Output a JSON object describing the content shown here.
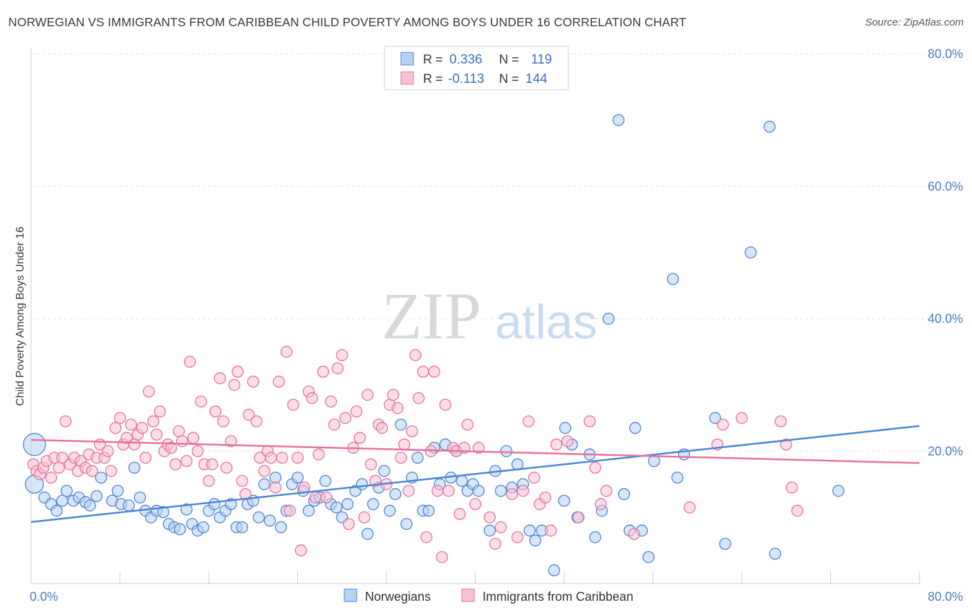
{
  "title": "NORWEGIAN VS IMMIGRANTS FROM CARIBBEAN CHILD POVERTY AMONG BOYS UNDER 16 CORRELATION CHART",
  "source": "Source: ZipAtlas.com",
  "watermark": {
    "zip": "ZIP",
    "atlas": "atlas"
  },
  "colors": {
    "blue": "#4a84d4",
    "blue_fill": "#b7d1f3",
    "pink": "#e8709a",
    "pink_fill": "#f7c2d4",
    "tick": "#4a7cc7"
  },
  "chart_data": {
    "type": "scatter",
    "xlabel": "",
    "ylabel": "Child Poverty Among Boys Under 16",
    "xlim": [
      0,
      80
    ],
    "ylim": [
      0,
      80
    ],
    "x_tick_labels": [
      "0.0%",
      "80.0%"
    ],
    "y_ticks": [
      20,
      40,
      60,
      80
    ],
    "y_tick_labels": [
      "20.0%",
      "40.0%",
      "60.0%",
      "80.0%"
    ],
    "grid": true,
    "legend_position": "top-center",
    "stats": [
      {
        "r_label": "R =",
        "r": "0.336",
        "n_label": "N =",
        "n": "119"
      },
      {
        "r_label": "R =",
        "r": "-0.113",
        "n_label": "N =",
        "n": "144"
      }
    ],
    "series": [
      {
        "name": "Norwegians",
        "color": "#4a84d4",
        "trend": [
          [
            0,
            9.3
          ],
          [
            80,
            23.8
          ]
        ],
        "points": [
          [
            0.3,
            21
          ],
          [
            0.3,
            15
          ],
          [
            1.2,
            13
          ],
          [
            1.8,
            12
          ],
          [
            2.3,
            11
          ],
          [
            2.8,
            12.5
          ],
          [
            3.2,
            14
          ],
          [
            3.8,
            12.5
          ],
          [
            4.3,
            13
          ],
          [
            4.9,
            12.3
          ],
          [
            5.3,
            11.8
          ],
          [
            5.9,
            13.2
          ],
          [
            6.3,
            16
          ],
          [
            7.3,
            12.5
          ],
          [
            7.8,
            14
          ],
          [
            8.1,
            12
          ],
          [
            8.8,
            11.8
          ],
          [
            9.3,
            17.5
          ],
          [
            9.8,
            13
          ],
          [
            10.3,
            11
          ],
          [
            10.8,
            10
          ],
          [
            11.3,
            11
          ],
          [
            11.9,
            10.8
          ],
          [
            12.4,
            9
          ],
          [
            12.9,
            8.5
          ],
          [
            13.4,
            8.2
          ],
          [
            14.0,
            11.2
          ],
          [
            14.5,
            9
          ],
          [
            15.0,
            8
          ],
          [
            15.5,
            8.5
          ],
          [
            16.0,
            11
          ],
          [
            16.5,
            12
          ],
          [
            17.0,
            10
          ],
          [
            17.5,
            11
          ],
          [
            18.0,
            12
          ],
          [
            18.5,
            8.5
          ],
          [
            19.0,
            8.5
          ],
          [
            19.5,
            12
          ],
          [
            20.0,
            12.5
          ],
          [
            20.5,
            10
          ],
          [
            21.0,
            15
          ],
          [
            21.5,
            9.5
          ],
          [
            22.0,
            16
          ],
          [
            22.5,
            8.5
          ],
          [
            23.0,
            11
          ],
          [
            23.5,
            15
          ],
          [
            24.0,
            16
          ],
          [
            24.5,
            14
          ],
          [
            25.0,
            11
          ],
          [
            25.5,
            12.5
          ],
          [
            26.0,
            13
          ],
          [
            26.5,
            15.5
          ],
          [
            27.0,
            12
          ],
          [
            27.5,
            11.5
          ],
          [
            28.0,
            10
          ],
          [
            28.5,
            12
          ],
          [
            29.2,
            14
          ],
          [
            29.8,
            15
          ],
          [
            30.3,
            7.5
          ],
          [
            30.8,
            12
          ],
          [
            31.3,
            14.5
          ],
          [
            31.8,
            17
          ],
          [
            32.3,
            11
          ],
          [
            32.8,
            13.5
          ],
          [
            33.3,
            24
          ],
          [
            33.8,
            9
          ],
          [
            34.3,
            16
          ],
          [
            34.8,
            19
          ],
          [
            35.3,
            11
          ],
          [
            35.8,
            11
          ],
          [
            36.3,
            20.5
          ],
          [
            36.8,
            15
          ],
          [
            37.3,
            21
          ],
          [
            37.8,
            16
          ],
          [
            38.3,
            20
          ],
          [
            38.8,
            15.5
          ],
          [
            39.3,
            14
          ],
          [
            39.8,
            15
          ],
          [
            40.3,
            14
          ],
          [
            41.3,
            8
          ],
          [
            41.8,
            17
          ],
          [
            42.3,
            14
          ],
          [
            42.8,
            20
          ],
          [
            43.3,
            14.5
          ],
          [
            43.8,
            18
          ],
          [
            44.3,
            15
          ],
          [
            44.9,
            8
          ],
          [
            45.4,
            6.5
          ],
          [
            46.0,
            8
          ],
          [
            47.1,
            2
          ],
          [
            48.1,
            23.5
          ],
          [
            48.7,
            21
          ],
          [
            48.0,
            12.5
          ],
          [
            49.2,
            10
          ],
          [
            50.3,
            19.5
          ],
          [
            50.8,
            7
          ],
          [
            51.4,
            11
          ],
          [
            52.0,
            40
          ],
          [
            52.9,
            70
          ],
          [
            53.4,
            13.5
          ],
          [
            53.9,
            8
          ],
          [
            54.4,
            23.5
          ],
          [
            55.0,
            8
          ],
          [
            55.6,
            4
          ],
          [
            56.1,
            18.5
          ],
          [
            57.8,
            46
          ],
          [
            58.2,
            16
          ],
          [
            58.8,
            19.5
          ],
          [
            61.6,
            25
          ],
          [
            62.5,
            6
          ],
          [
            64.8,
            50
          ],
          [
            66.5,
            69
          ],
          [
            67.0,
            4.5
          ],
          [
            72.7,
            14
          ]
        ]
      },
      {
        "name": "Immigrants from Caribbean",
        "color": "#e8709a",
        "trend": [
          [
            0,
            21.7
          ],
          [
            80,
            18.2
          ]
        ],
        "points": [
          [
            0.2,
            18
          ],
          [
            0.5,
            17
          ],
          [
            0.8,
            16.5
          ],
          [
            1.1,
            17.5
          ],
          [
            1.4,
            18.5
          ],
          [
            1.8,
            16
          ],
          [
            2.1,
            19
          ],
          [
            2.5,
            17.5
          ],
          [
            2.8,
            19
          ],
          [
            3.1,
            24.5
          ],
          [
            3.5,
            18
          ],
          [
            3.9,
            19
          ],
          [
            4.2,
            17
          ],
          [
            4.5,
            18.5
          ],
          [
            4.9,
            17.5
          ],
          [
            5.2,
            19.5
          ],
          [
            5.5,
            17
          ],
          [
            5.9,
            19
          ],
          [
            6.2,
            21
          ],
          [
            6.6,
            19
          ],
          [
            6.9,
            20
          ],
          [
            7.2,
            17
          ],
          [
            7.6,
            23.5
          ],
          [
            8.0,
            25
          ],
          [
            8.3,
            21
          ],
          [
            8.6,
            22
          ],
          [
            9.0,
            24
          ],
          [
            9.3,
            21
          ],
          [
            9.6,
            22.5
          ],
          [
            10.0,
            23.5
          ],
          [
            10.3,
            19
          ],
          [
            10.6,
            29
          ],
          [
            11.0,
            24.5
          ],
          [
            11.3,
            22.5
          ],
          [
            11.6,
            26
          ],
          [
            12.0,
            20
          ],
          [
            12.3,
            21
          ],
          [
            12.6,
            20.5
          ],
          [
            13.0,
            18
          ],
          [
            13.3,
            23
          ],
          [
            13.6,
            21.5
          ],
          [
            14.0,
            18.5
          ],
          [
            14.3,
            33.5
          ],
          [
            14.6,
            22
          ],
          [
            15.0,
            20
          ],
          [
            15.3,
            27.5
          ],
          [
            15.6,
            18
          ],
          [
            16.0,
            15.5
          ],
          [
            16.3,
            18
          ],
          [
            16.6,
            26
          ],
          [
            17.0,
            31
          ],
          [
            17.3,
            24.5
          ],
          [
            17.6,
            17.5
          ],
          [
            18.0,
            21.5
          ],
          [
            18.3,
            30
          ],
          [
            18.6,
            32
          ],
          [
            19.0,
            15.5
          ],
          [
            19.3,
            13.5
          ],
          [
            19.6,
            25.5
          ],
          [
            20.0,
            30.5
          ],
          [
            20.3,
            24.5
          ],
          [
            20.6,
            19
          ],
          [
            21.0,
            17
          ],
          [
            21.3,
            20
          ],
          [
            21.6,
            19
          ],
          [
            22.0,
            14.5
          ],
          [
            22.3,
            30.5
          ],
          [
            22.6,
            19
          ],
          [
            23.0,
            35
          ],
          [
            23.3,
            11
          ],
          [
            23.6,
            27
          ],
          [
            24.0,
            19
          ],
          [
            24.3,
            5
          ],
          [
            24.6,
            14.5
          ],
          [
            25.0,
            29
          ],
          [
            25.3,
            28
          ],
          [
            25.6,
            13
          ],
          [
            25.9,
            19.5
          ],
          [
            26.3,
            32
          ],
          [
            26.6,
            13
          ],
          [
            27.0,
            27.5
          ],
          [
            27.3,
            24
          ],
          [
            27.6,
            32.5
          ],
          [
            28.0,
            34.5
          ],
          [
            28.3,
            25
          ],
          [
            28.6,
            9
          ],
          [
            29.0,
            20.5
          ],
          [
            29.3,
            26
          ],
          [
            29.6,
            22
          ],
          [
            30.0,
            10
          ],
          [
            30.3,
            28.5
          ],
          [
            30.6,
            18
          ],
          [
            31.0,
            15.5
          ],
          [
            31.3,
            24
          ],
          [
            31.6,
            23.5
          ],
          [
            32.0,
            15
          ],
          [
            32.3,
            27
          ],
          [
            32.6,
            28.5
          ],
          [
            33.0,
            26.5
          ],
          [
            33.3,
            19
          ],
          [
            33.6,
            21
          ],
          [
            34.0,
            14
          ],
          [
            34.3,
            23
          ],
          [
            34.6,
            34.5
          ],
          [
            34.9,
            28
          ],
          [
            35.3,
            32
          ],
          [
            35.6,
            7
          ],
          [
            36.0,
            20
          ],
          [
            36.3,
            32
          ],
          [
            36.6,
            14
          ],
          [
            37.0,
            4
          ],
          [
            37.3,
            27
          ],
          [
            37.6,
            14
          ],
          [
            38.0,
            20.5
          ],
          [
            38.3,
            20
          ],
          [
            38.6,
            10.5
          ],
          [
            39.0,
            20.5
          ],
          [
            39.3,
            24
          ],
          [
            40.0,
            12
          ],
          [
            40.3,
            20.5
          ],
          [
            41.3,
            10
          ],
          [
            41.8,
            6
          ],
          [
            42.3,
            8.5
          ],
          [
            43.3,
            13.5
          ],
          [
            43.8,
            7
          ],
          [
            44.3,
            14
          ],
          [
            44.8,
            24.5
          ],
          [
            45.3,
            16
          ],
          [
            45.8,
            12
          ],
          [
            46.3,
            13
          ],
          [
            46.8,
            8
          ],
          [
            47.3,
            21
          ],
          [
            48.3,
            21.5
          ],
          [
            49.3,
            10
          ],
          [
            50.3,
            24.5
          ],
          [
            50.8,
            17.5
          ],
          [
            51.3,
            12
          ],
          [
            51.8,
            14
          ],
          [
            54.3,
            7.5
          ],
          [
            59.3,
            11.5
          ],
          [
            61.8,
            21
          ],
          [
            62.3,
            24
          ],
          [
            64.0,
            25
          ],
          [
            67.5,
            24.5
          ],
          [
            68.0,
            21
          ],
          [
            68.5,
            14.5
          ],
          [
            69.0,
            11
          ]
        ]
      }
    ]
  }
}
